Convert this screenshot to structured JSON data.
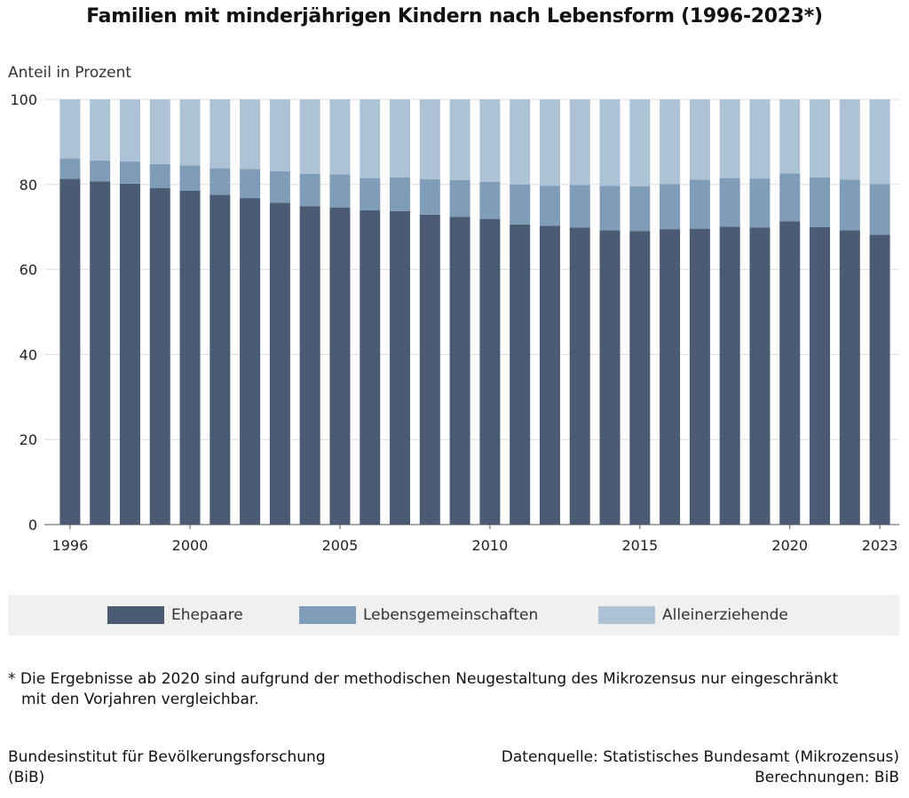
{
  "title": "Familien mit minderjährigen Kindern nach Lebensform (1996-2023*)",
  "footnote": {
    "line1": "* Die Ergebnisse ab 2020 sind aufgrund der methodischen Neugestaltung des Mikrozensus nur eingeschränkt",
    "line2": "mit den Vorjahren vergleichbar."
  },
  "source": {
    "left_line1": "Bundesinstitut für Bevölkerungsforschung",
    "left_line2": "(BiB)",
    "right_line1": "Datenquelle: Statistisches Bundesamt (Mikrozensus)",
    "right_line2": "Berechnungen: BiB"
  },
  "colors": {
    "ehepaare": "#4a5b73",
    "lebensgemeinschaften": "#7f9cb8",
    "alleinerziehende": "#adc2d4",
    "grid": "#dddddd"
  },
  "chart_data": {
    "type": "bar",
    "stacked": true,
    "title": "Familien mit minderjährigen Kindern nach Lebensform (1996-2023*)",
    "ylabel": "Anteil in Prozent",
    "ylim": [
      0,
      100
    ],
    "yticks": [
      0,
      20,
      40,
      60,
      80,
      100
    ],
    "xticks": [
      "1996",
      "2000",
      "2005",
      "2010",
      "2015",
      "2020",
      "2023"
    ],
    "categories": [
      "1996",
      "1997",
      "1998",
      "1999",
      "2000",
      "2001",
      "2002",
      "2003",
      "2004",
      "2005",
      "2006",
      "2007",
      "2008",
      "2009",
      "2010",
      "2011",
      "2012",
      "2013",
      "2014",
      "2015",
      "2016",
      "2017",
      "2018",
      "2019",
      "2020",
      "2021",
      "2022",
      "2023"
    ],
    "series": [
      {
        "name": "Ehepaare",
        "values": [
          81.3,
          80.7,
          80.2,
          79.2,
          78.5,
          77.6,
          76.8,
          75.7,
          74.9,
          74.6,
          73.9,
          73.7,
          72.9,
          72.4,
          71.9,
          70.6,
          70.3,
          69.9,
          69.2,
          69.0,
          69.5,
          69.6,
          70.1,
          69.9,
          71.3,
          70.0,
          69.2,
          68.2
        ]
      },
      {
        "name": "Lebensgemeinschaften",
        "values": [
          4.8,
          4.9,
          5.2,
          5.6,
          6.0,
          6.2,
          6.8,
          7.4,
          7.6,
          7.8,
          7.6,
          8.0,
          8.3,
          8.6,
          8.7,
          9.4,
          9.4,
          10.0,
          10.5,
          10.6,
          10.6,
          11.5,
          11.4,
          11.5,
          11.3,
          11.7,
          11.9,
          11.9
        ]
      },
      {
        "name": "Alleinerziehende",
        "values": [
          13.9,
          14.4,
          14.6,
          15.2,
          15.5,
          16.2,
          16.4,
          16.9,
          17.5,
          17.6,
          18.5,
          18.3,
          18.8,
          19.0,
          19.4,
          20.0,
          20.3,
          20.1,
          20.3,
          20.4,
          19.9,
          18.9,
          18.5,
          18.6,
          17.4,
          18.3,
          18.9,
          19.9
        ]
      }
    ],
    "legend_position": "bottom",
    "grid": true
  }
}
